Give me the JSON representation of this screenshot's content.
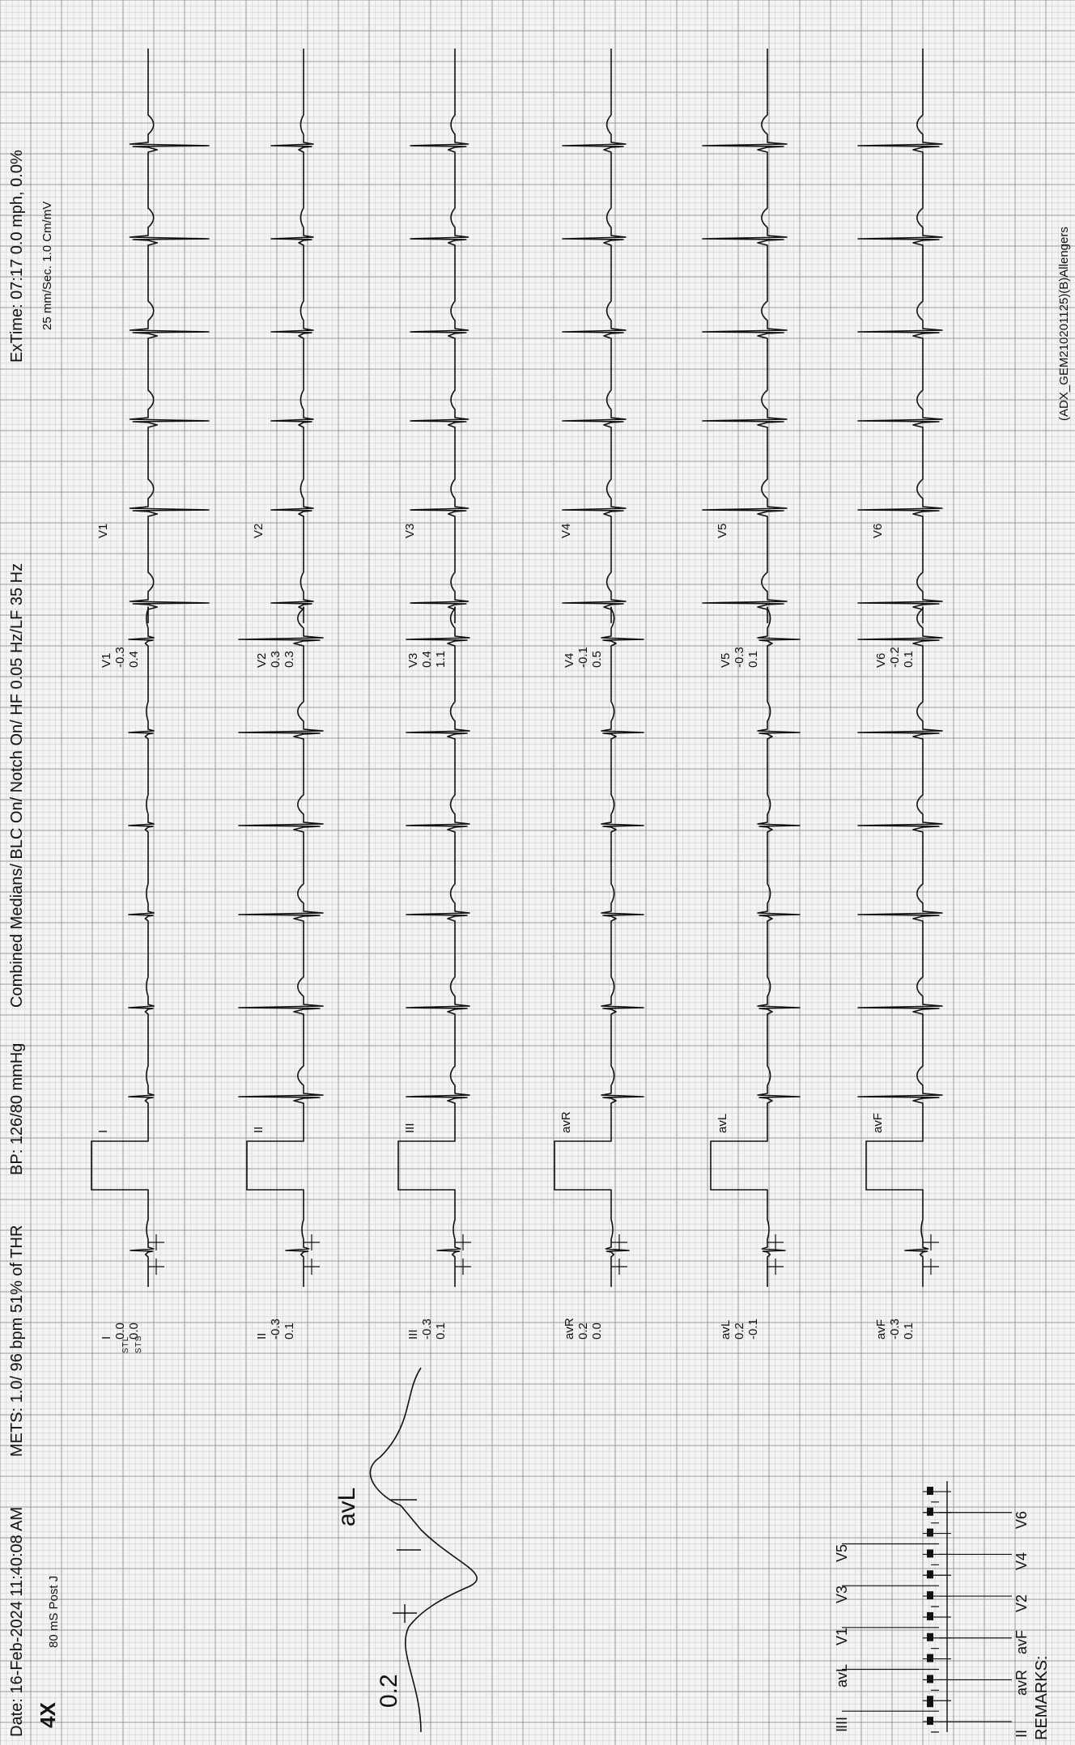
{
  "header": {
    "date": "Date: 16-Feb-2024 11:40:08 AM",
    "mets": "METS: 1.0/ 96 bpm 51% of THR",
    "bp": "BP: 126/80 mmHg",
    "filter": "Combined Medians/ BLC On/ Notch On/ HF 0.05 Hz/LF 35  Hz",
    "extime": "ExTime: 07:17   0.0 mph,  0.0%",
    "speed": "25 mm/Sec.  1.0 Cm/mV",
    "magnification": "4X",
    "post_j": "80 mS Post J",
    "footer_code": "(ADX_GEM210201125)(B)Allengers"
  },
  "st_labels": {
    "stl": "STL",
    "sts": "STS"
  },
  "leads": [
    {
      "name": "I",
      "stl": "0.0",
      "sts": "0.0"
    },
    {
      "name": "II",
      "stl": "-0.3",
      "sts": "0.1"
    },
    {
      "name": "III",
      "stl": "-0.3",
      "sts": "0.1"
    },
    {
      "name": "avR",
      "stl": "0.2",
      "sts": "0.0"
    },
    {
      "name": "avL",
      "stl": "0.2",
      "sts": "-0.1"
    },
    {
      "name": "avF",
      "stl": "-0.3",
      "sts": "0.1"
    },
    {
      "name": "V1",
      "stl": "-0.3",
      "sts": "0.4"
    },
    {
      "name": "V2",
      "stl": "0.3",
      "sts": "0.3"
    },
    {
      "name": "V3",
      "stl": "0.4",
      "sts": "1.1"
    },
    {
      "name": "V4",
      "stl": "-0.1",
      "sts": "0.5"
    },
    {
      "name": "V5",
      "stl": "-0.3",
      "sts": "0.1"
    },
    {
      "name": "V6",
      "stl": "-0.2",
      "sts": "0.1"
    }
  ],
  "magnified": {
    "lead": "avL",
    "value": "0.2"
  },
  "bar_labels": {
    "top": [
      "III",
      "avL",
      "V1",
      "V3",
      "V5"
    ],
    "bottom": [
      "II",
      "avR",
      "avF",
      "V2",
      "V4",
      "V6"
    ],
    "first": "I"
  },
  "remarks": "REMARKS:",
  "colors": {
    "grid_minor": "#cfcfcf",
    "grid_major": "#9a9a9a",
    "trace": "#111111",
    "paper": "#f4f4f2"
  }
}
